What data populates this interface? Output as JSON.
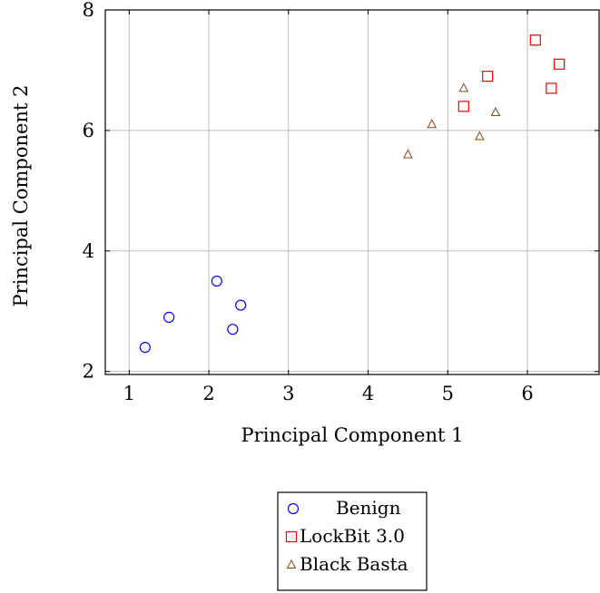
{
  "chart_data": {
    "type": "scatter",
    "xlabel": "Principal Component 1",
    "ylabel": "Principal Component 2",
    "xlim": [
      0.7,
      6.9
    ],
    "ylim": [
      1.95,
      8.0
    ],
    "xticks": [
      1,
      2,
      3,
      4,
      5,
      6
    ],
    "yticks": [
      2,
      4,
      6,
      8
    ],
    "grid": true,
    "legend_placement": "below",
    "series": [
      {
        "name": "Benign",
        "marker": "circle",
        "color": "#0000ff",
        "points": [
          [
            1.2,
            2.4
          ],
          [
            1.5,
            2.9
          ],
          [
            2.1,
            3.5
          ],
          [
            2.3,
            2.7
          ],
          [
            2.4,
            3.1
          ]
        ]
      },
      {
        "name": "LockBit 3.0",
        "marker": "square",
        "color": "#ff0000",
        "points": [
          [
            5.2,
            6.4
          ],
          [
            5.5,
            6.9
          ],
          [
            6.1,
            7.5
          ],
          [
            6.3,
            6.7
          ],
          [
            6.4,
            7.1
          ]
        ]
      },
      {
        "name": "Black Basta",
        "marker": "triangle",
        "color": "#8b4513",
        "points": [
          [
            4.5,
            5.6
          ],
          [
            4.8,
            6.1
          ],
          [
            5.2,
            6.7
          ],
          [
            5.4,
            5.9
          ],
          [
            5.6,
            6.3
          ]
        ]
      }
    ]
  }
}
